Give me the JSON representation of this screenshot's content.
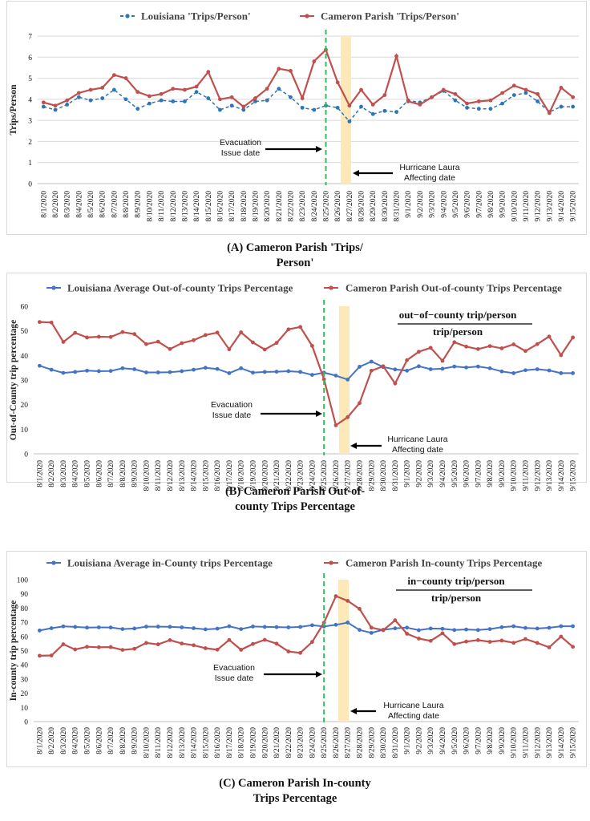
{
  "dates": [
    "8/1/2020",
    "8/2/2020",
    "8/3/2020",
    "8/4/2020",
    "8/5/2020",
    "8/6/2020",
    "8/7/2020",
    "8/8/2020",
    "8/9/2020",
    "8/10/2020",
    "8/11/2020",
    "8/12/2020",
    "8/13/2020",
    "8/14/2020",
    "8/15/2020",
    "8/16/2020",
    "8/17/2020",
    "8/18/2020",
    "8/19/2020",
    "8/20/2020",
    "8/21/2020",
    "8/22/2020",
    "8/23/2020",
    "8/24/2020",
    "8/25/2020",
    "8/26/2020",
    "8/27/2020",
    "8/28/2020",
    "8/29/2020",
    "8/30/2020",
    "8/31/2020",
    "9/1/2020",
    "9/2/2020",
    "9/3/2020",
    "9/4/2020",
    "9/5/2020",
    "9/6/2020",
    "9/7/2020",
    "9/8/2020",
    "9/9/2020",
    "9/10/2020",
    "9/11/2020",
    "9/12/2020",
    "9/13/2020",
    "9/14/2020",
    "9/15/2020"
  ],
  "colors": {
    "louisiana_a": "#2e75b6",
    "louisiana_bc": "#4472c4",
    "cameron": "#c0504d",
    "evac_line": "#2fbf5a",
    "laura_band": "#fde9b8"
  },
  "chart_data": [
    {
      "type": "line",
      "ylabel": "Trips/Person",
      "ylim": [
        0,
        7
      ],
      "yticks": [
        0,
        1,
        2,
        3,
        4,
        5,
        6,
        7
      ],
      "grid": true,
      "legend_placement": "top",
      "x": "dates",
      "series": [
        {
          "name": "Louisiana 'Trips/Person'",
          "style": "dashed",
          "color": "#2e75b6",
          "values": [
            3.65,
            3.5,
            3.75,
            4.1,
            3.95,
            4.05,
            4.45,
            4.0,
            3.55,
            3.8,
            3.95,
            3.9,
            3.9,
            4.35,
            4.05,
            3.5,
            3.7,
            3.5,
            3.9,
            3.95,
            4.5,
            4.1,
            3.6,
            3.5,
            3.7,
            3.6,
            2.95,
            3.65,
            3.3,
            3.45,
            3.4,
            3.95,
            3.85,
            4.1,
            4.4,
            3.95,
            3.6,
            3.55,
            3.55,
            3.8,
            4.2,
            4.3,
            3.9,
            3.4,
            3.65,
            3.65
          ]
        },
        {
          "name": "Cameron Parish 'Trips/Person'",
          "style": "solid",
          "color": "#c0504d",
          "values": [
            3.85,
            3.7,
            3.95,
            4.3,
            4.45,
            4.55,
            5.15,
            5.0,
            4.35,
            4.15,
            4.25,
            4.5,
            4.45,
            4.6,
            5.3,
            4.0,
            4.1,
            3.65,
            4.05,
            4.5,
            5.45,
            5.35,
            4.05,
            5.8,
            6.35,
            4.8,
            3.7,
            4.45,
            3.75,
            4.2,
            6.05,
            3.9,
            3.75,
            4.1,
            4.45,
            4.25,
            3.8,
            3.9,
            3.95,
            4.3,
            4.65,
            4.45,
            4.25,
            3.35,
            4.55,
            4.1
          ]
        }
      ],
      "annotations": {
        "evacuation": [
          "Evacuation",
          "Issue date"
        ],
        "laura": [
          "Hurricane Laura",
          "Affecting date"
        ]
      },
      "caption": [
        "(A) Cameron Parish 'Trips/",
        "Person'"
      ]
    },
    {
      "type": "line",
      "ylabel": "Out-of-County trip percentage",
      "ylim": [
        0,
        60
      ],
      "yticks": [
        0,
        10,
        20,
        30,
        40,
        50,
        60
      ],
      "grid": false,
      "legend_placement": "top",
      "x": "dates",
      "series": [
        {
          "name": "Louisiana Average Out-of-county Trips Percentage",
          "style": "solid",
          "color": "#4472c4",
          "values": [
            35.8,
            34.2,
            32.9,
            33.3,
            33.8,
            33.6,
            33.7,
            34.8,
            34.4,
            33.1,
            33.1,
            33.2,
            33.6,
            34.2,
            35.0,
            34.5,
            32.8,
            34.8,
            33.0,
            33.3,
            33.4,
            33.6,
            33.3,
            32.1,
            33.0,
            31.8,
            30.2,
            35.4,
            37.5,
            35.3,
            34.3,
            33.8,
            35.6,
            34.4,
            34.6,
            35.5,
            35.1,
            35.5,
            34.8,
            33.5,
            32.8,
            34.0,
            34.4,
            33.9,
            32.8,
            32.8
          ]
        },
        {
          "name": "Cameron Parish Out-of-county Trips Percentage",
          "style": "solid",
          "color": "#c0504d",
          "values": [
            53.6,
            53.4,
            45.5,
            49.2,
            47.3,
            47.6,
            47.5,
            49.5,
            48.7,
            44.6,
            45.6,
            42.6,
            45.0,
            46.2,
            48.3,
            49.3,
            42.5,
            49.4,
            45.3,
            42.4,
            45.1,
            50.6,
            51.6,
            43.9,
            30.3,
            11.6,
            14.9,
            20.6,
            33.8,
            35.6,
            28.6,
            38.1,
            41.5,
            43.1,
            37.8,
            45.4,
            43.6,
            42.6,
            43.8,
            42.9,
            44.5,
            41.8,
            44.6,
            47.7,
            40.1,
            47.3
          ]
        }
      ],
      "formula": {
        "numerator": "out−of−county trip/person",
        "denominator": "trip/person"
      },
      "annotations": {
        "evacuation": [
          "Evacuation",
          "Issue date"
        ],
        "laura": [
          "Hurricane Laura",
          "Affecting date"
        ]
      },
      "caption": [
        "(B) Cameron Parish Out-of-",
        "county Trips Percentage"
      ]
    },
    {
      "type": "line",
      "ylabel": "In-county trip percentage",
      "ylim": [
        0,
        100
      ],
      "yticks": [
        0,
        10,
        20,
        30,
        40,
        50,
        60,
        70,
        80,
        90,
        100
      ],
      "grid": false,
      "legend_placement": "top",
      "x": "dates",
      "series": [
        {
          "name": "Louisiana Average in-County trips Percentage",
          "style": "solid",
          "color": "#4472c4",
          "values": [
            64.2,
            65.8,
            67.1,
            66.7,
            66.2,
            66.4,
            66.3,
            65.2,
            65.6,
            66.9,
            66.9,
            66.8,
            66.4,
            65.8,
            65.0,
            65.5,
            67.2,
            65.2,
            67.0,
            66.7,
            66.6,
            66.4,
            66.7,
            67.9,
            67.0,
            68.2,
            69.8,
            64.6,
            62.5,
            64.7,
            65.7,
            66.2,
            64.4,
            65.6,
            65.4,
            64.5,
            64.9,
            64.5,
            65.2,
            66.5,
            67.2,
            66.0,
            65.6,
            66.1,
            67.2,
            67.2
          ]
        },
        {
          "name": "Cameron Parish In-county Trips Percentage",
          "style": "solid",
          "color": "#c0504d",
          "values": [
            46.4,
            46.6,
            54.5,
            50.8,
            52.7,
            52.4,
            52.5,
            50.5,
            51.3,
            55.4,
            54.4,
            57.4,
            55.0,
            53.8,
            51.7,
            50.7,
            57.5,
            50.6,
            54.7,
            57.6,
            54.9,
            49.4,
            48.4,
            56.1,
            69.7,
            88.4,
            85.1,
            79.4,
            66.2,
            64.4,
            71.4,
            61.9,
            58.5,
            56.9,
            62.2,
            54.6,
            56.4,
            57.4,
            56.2,
            57.1,
            55.5,
            58.2,
            55.4,
            52.3,
            59.9,
            52.7
          ]
        }
      ],
      "formula": {
        "numerator": "in−county trip/person",
        "denominator": "trip/person"
      },
      "annotations": {
        "evacuation": [
          "Evacuation",
          "Issue date"
        ],
        "laura": [
          "Hurricane Laura",
          "Affecting date"
        ]
      },
      "caption": [
        "(C) Cameron Parish In-county",
        "Trips Percentage"
      ]
    }
  ]
}
